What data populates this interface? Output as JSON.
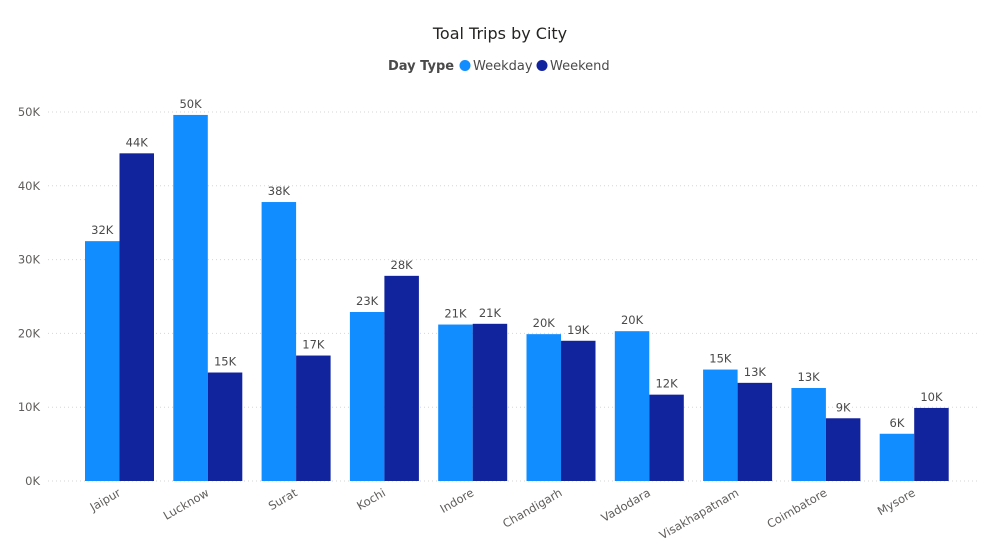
{
  "chart_data": {
    "type": "bar",
    "title": "Toal Trips by City",
    "legend_title": "Day Type",
    "legend_position": "top-center",
    "categories": [
      "Jaipur",
      "Lucknow",
      "Surat",
      "Kochi",
      "Indore",
      "Chandigarh",
      "Vadodara",
      "Visakhapatnam",
      "Coimbatore",
      "Mysore"
    ],
    "series": [
      {
        "name": "Weekday",
        "color": "#118dff",
        "values": [
          32.5,
          49.6,
          37.8,
          22.9,
          21.2,
          19.9,
          20.3,
          15.1,
          12.6,
          6.4
        ],
        "labels": [
          "32K",
          "50K",
          "38K",
          "23K",
          "21K",
          "20K",
          "20K",
          "15K",
          "13K",
          "6K"
        ]
      },
      {
        "name": "Weekend",
        "color": "#12239e",
        "values": [
          44.4,
          14.7,
          17.0,
          27.8,
          21.3,
          19.0,
          11.7,
          13.3,
          8.5,
          9.9
        ],
        "labels": [
          "44K",
          "15K",
          "17K",
          "28K",
          "21K",
          "19K",
          "12K",
          "13K",
          "9K",
          "10K"
        ]
      }
    ],
    "ylim": [
      0,
      50
    ],
    "yticks": [
      0,
      10,
      20,
      30,
      40,
      50
    ],
    "ytick_labels": [
      "0K",
      "10K",
      "20K",
      "30K",
      "40K",
      "50K"
    ],
    "grid": true,
    "xlabel": "",
    "ylabel": ""
  }
}
